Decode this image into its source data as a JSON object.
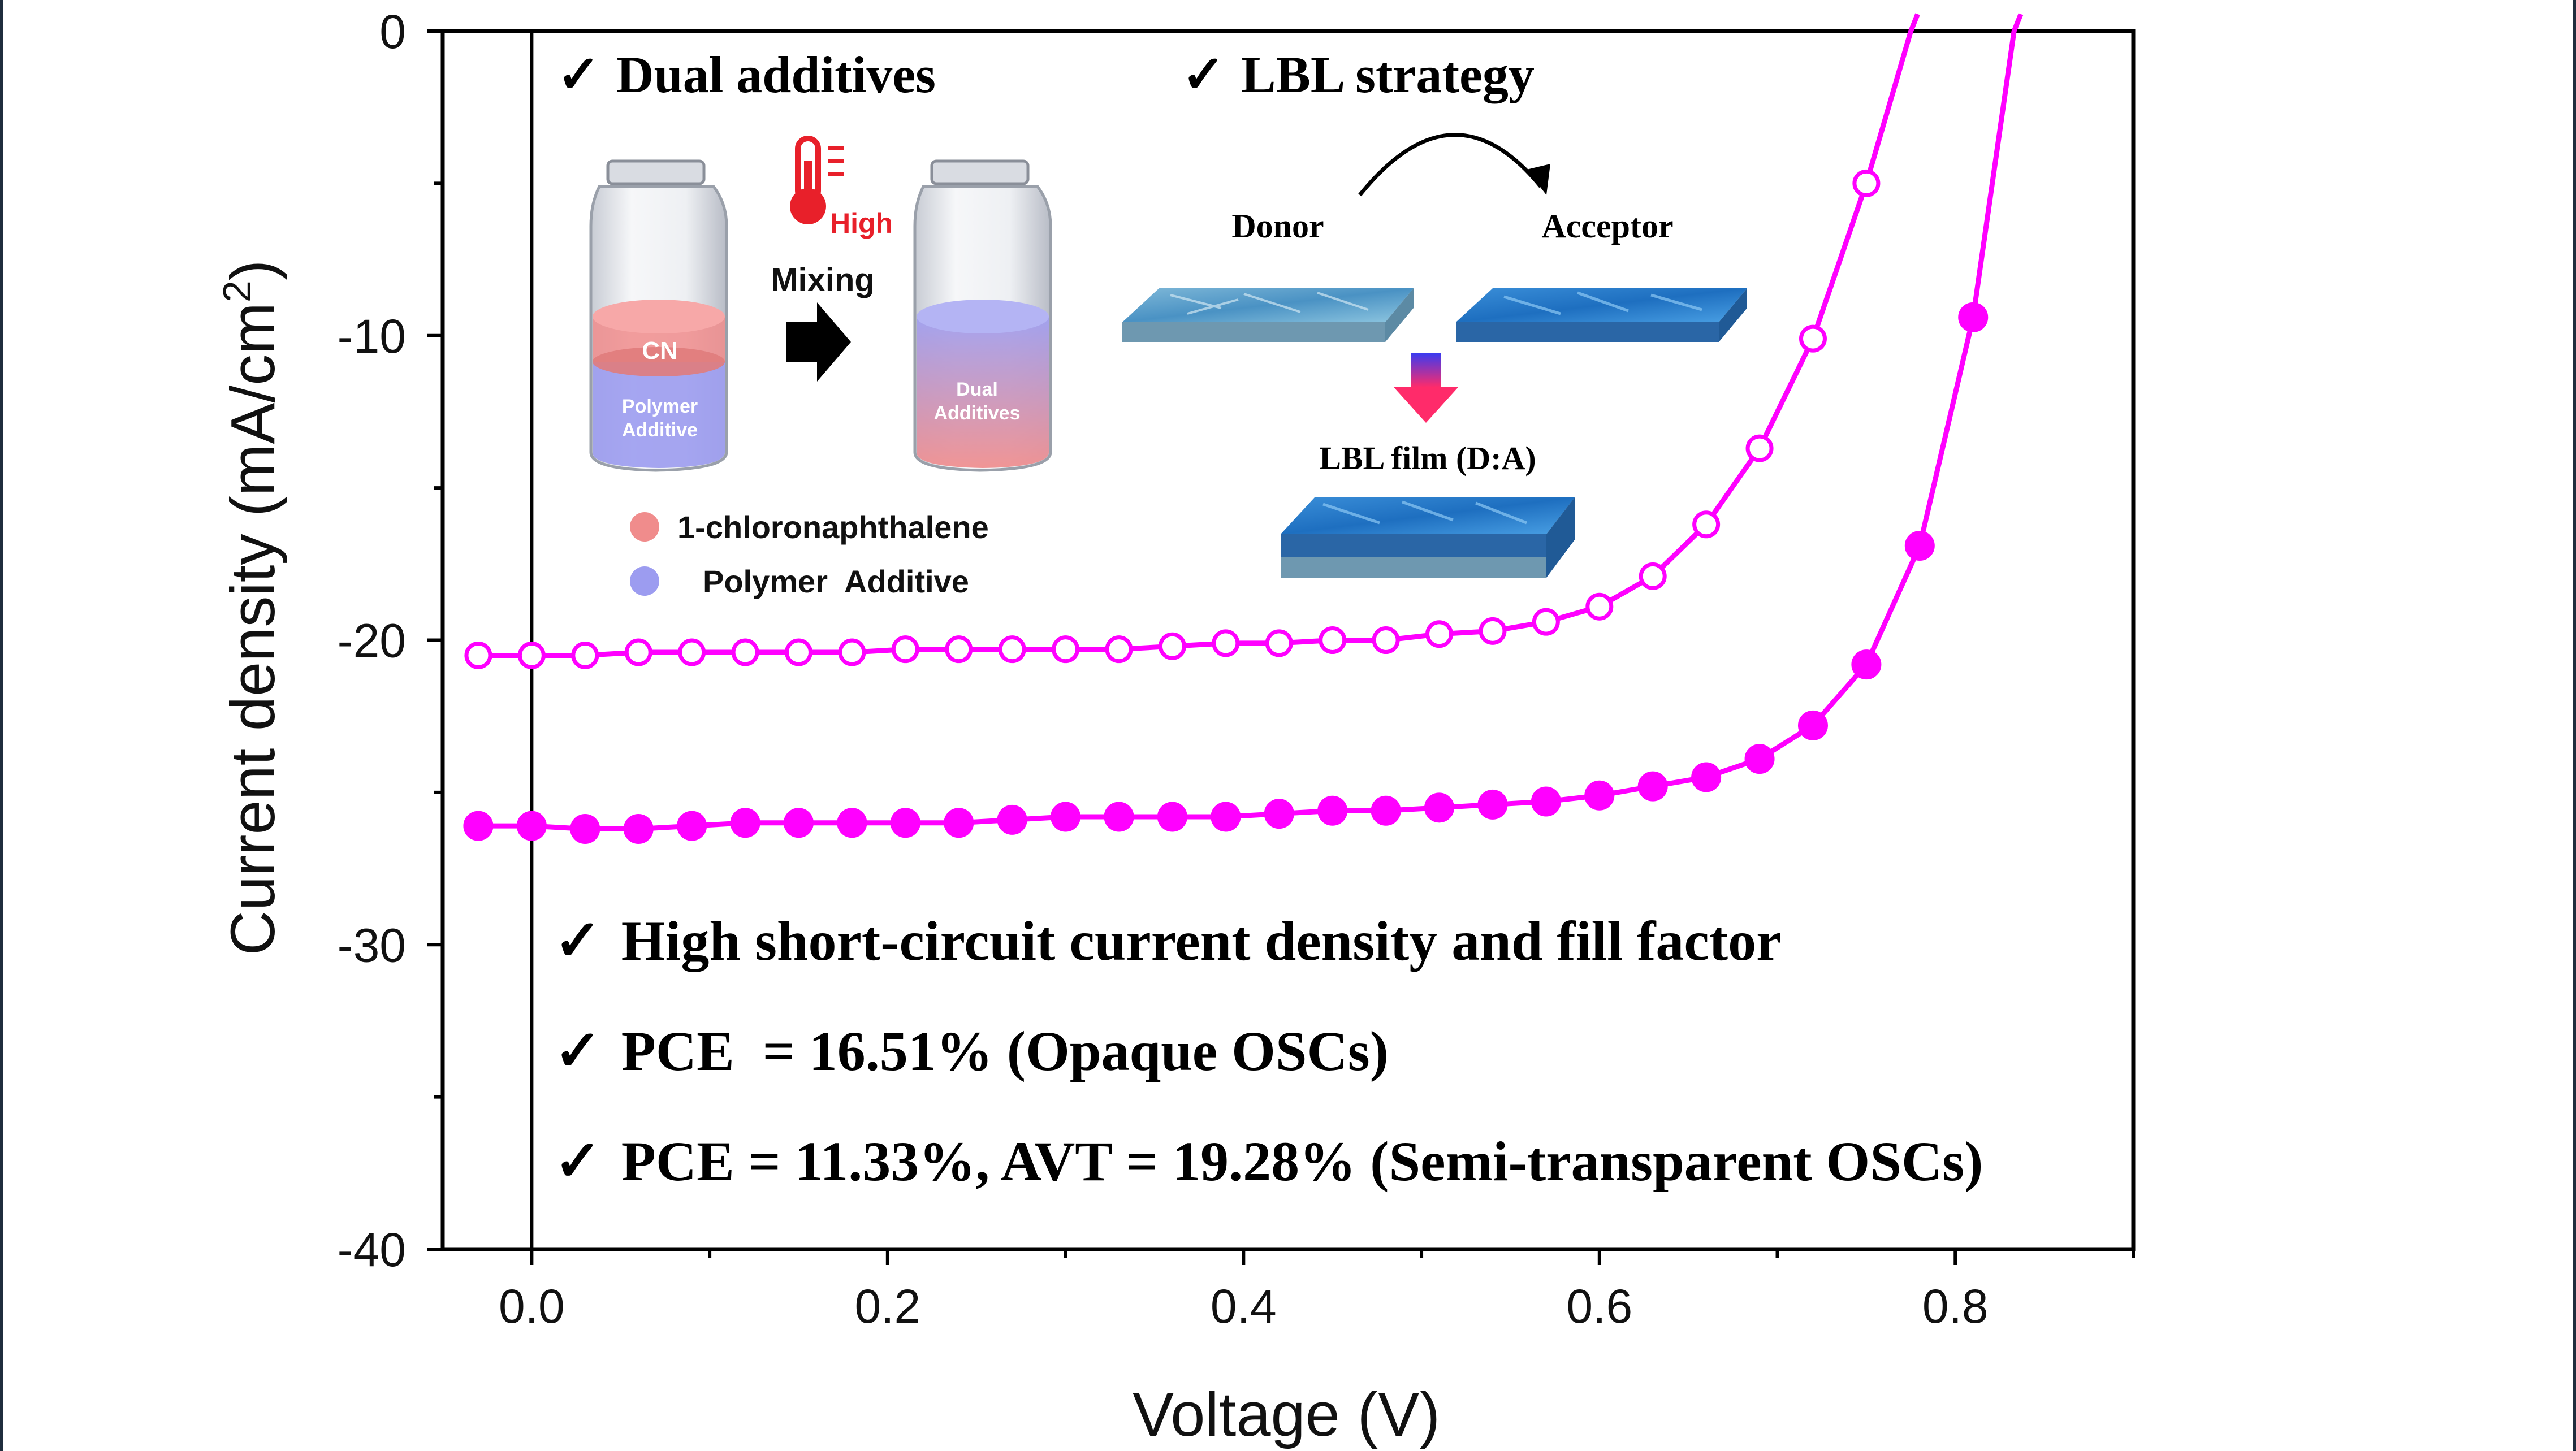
{
  "chart_data": {
    "type": "line",
    "xlabel": "Voltage (V)",
    "ylabel_main": "Current density (mA/cm",
    "ylabel_sup": "2",
    "ylabel_close": ")",
    "xlim": [
      -0.05,
      0.9
    ],
    "ylim": [
      -40,
      0
    ],
    "xticks": [
      0.0,
      0.2,
      0.4,
      0.6,
      0.8
    ],
    "xtick_labels": [
      "0.0",
      "0.2",
      "0.4",
      "0.6",
      "0.8"
    ],
    "yticks": [
      0,
      -10,
      -20,
      -30,
      -40
    ],
    "ytick_labels": [
      "0",
      "-10",
      "-20",
      "-30",
      "-40"
    ],
    "grid": false,
    "series": [
      {
        "marker": "open-circle",
        "color": "#ff00ff",
        "x": [
          -0.03,
          0.0,
          0.03,
          0.06,
          0.09,
          0.12,
          0.15,
          0.18,
          0.21,
          0.24,
          0.27,
          0.3,
          0.33,
          0.36,
          0.39,
          0.42,
          0.45,
          0.48,
          0.51,
          0.54,
          0.57,
          0.6,
          0.63,
          0.66,
          0.69,
          0.72,
          0.75
        ],
        "y": [
          -20.5,
          -20.5,
          -20.5,
          -20.4,
          -20.4,
          -20.4,
          -20.4,
          -20.4,
          -20.3,
          -20.3,
          -20.3,
          -20.3,
          -20.3,
          -20.2,
          -20.1,
          -20.1,
          -20.0,
          -20.0,
          -19.8,
          -19.7,
          -19.4,
          -18.9,
          -17.9,
          -16.2,
          -13.7,
          -10.1,
          -5.0
        ],
        "curve_end_x": 0.775
      },
      {
        "marker": "filled-circle",
        "color": "#ff00ff",
        "x": [
          -0.03,
          0.0,
          0.03,
          0.06,
          0.09,
          0.12,
          0.15,
          0.18,
          0.21,
          0.24,
          0.27,
          0.3,
          0.33,
          0.36,
          0.39,
          0.42,
          0.45,
          0.48,
          0.51,
          0.54,
          0.57,
          0.6,
          0.63,
          0.66,
          0.69,
          0.72,
          0.75,
          0.78,
          0.81
        ],
        "y": [
          -26.1,
          -26.1,
          -26.2,
          -26.2,
          -26.1,
          -26.0,
          -26.0,
          -26.0,
          -26.0,
          -26.0,
          -25.9,
          -25.8,
          -25.8,
          -25.8,
          -25.8,
          -25.7,
          -25.6,
          -25.6,
          -25.5,
          -25.4,
          -25.3,
          -25.1,
          -24.8,
          -24.5,
          -23.9,
          -22.8,
          -20.8,
          -16.9,
          -9.4
        ],
        "curve_end_x": 0.833
      }
    ]
  },
  "inset": {
    "check_mark": "✓",
    "dual_additives": "Dual additives",
    "lbl_strategy": "LBL strategy",
    "mixing": "Mixing",
    "high": "High",
    "cn": "CN",
    "polymer_additive_vial": [
      "Polymer",
      "Additive"
    ],
    "dual_additives_vial": [
      "Dual",
      "Additives"
    ],
    "legend_cn": "1-chloronaphthalene",
    "legend_polymer": "Polymer  Additive",
    "donor": "Donor",
    "acceptor": "Acceptor",
    "lbl_film": "LBL film (D:A)",
    "colors": {
      "cn": "#f08c8c",
      "polymer": "#9c9cf0",
      "thermo": "#e8202a"
    },
    "icons": [
      "thermometer-icon",
      "right-arrow-icon",
      "down-arrow-icon",
      "curved-arrow-icon",
      "vial-icon"
    ]
  },
  "highlights": [
    "High short-circuit current density and fill factor",
    "PCE  = 16.51% (Opaque OSCs)",
    "PCE = 11.33%, AVT = 19.28% (Semi-transparent OSCs)"
  ]
}
